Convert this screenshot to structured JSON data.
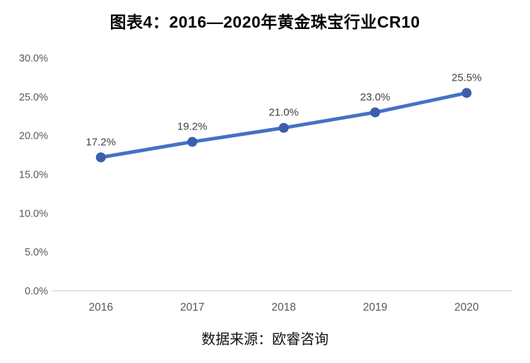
{
  "header": {
    "title": "图表4：2016—2020年黄金珠宝行业CR10"
  },
  "footer": {
    "source_text": "数据来源：欧睿咨询"
  },
  "chart_data": {
    "type": "line",
    "title": "图表4：2016—2020年黄金珠宝行业CR10",
    "categories": [
      "2016",
      "2017",
      "2018",
      "2019",
      "2020"
    ],
    "series": [
      {
        "name": "CR10",
        "values": [
          17.2,
          19.2,
          21.0,
          23.0,
          25.5
        ]
      }
    ],
    "point_labels": [
      "17.2%",
      "19.2%",
      "21.0%",
      "23.0%",
      "25.5%"
    ],
    "xlabel": "",
    "ylabel": "",
    "y_axis": {
      "min": 0,
      "max": 30,
      "tick_step": 5,
      "tick_labels": [
        "0.0%",
        "5.0%",
        "10.0%",
        "15.0%",
        "20.0%",
        "25.0%",
        "30.0%"
      ]
    },
    "grid": false,
    "legend": "none",
    "source": "数据来源：欧睿咨询",
    "colors": {
      "line": "#4472C4",
      "marker": "#3D5EAD",
      "axis_line": "#D9D9D9",
      "tick_text": "#595959",
      "label_text": "#404040",
      "title_text": "#000000"
    }
  }
}
